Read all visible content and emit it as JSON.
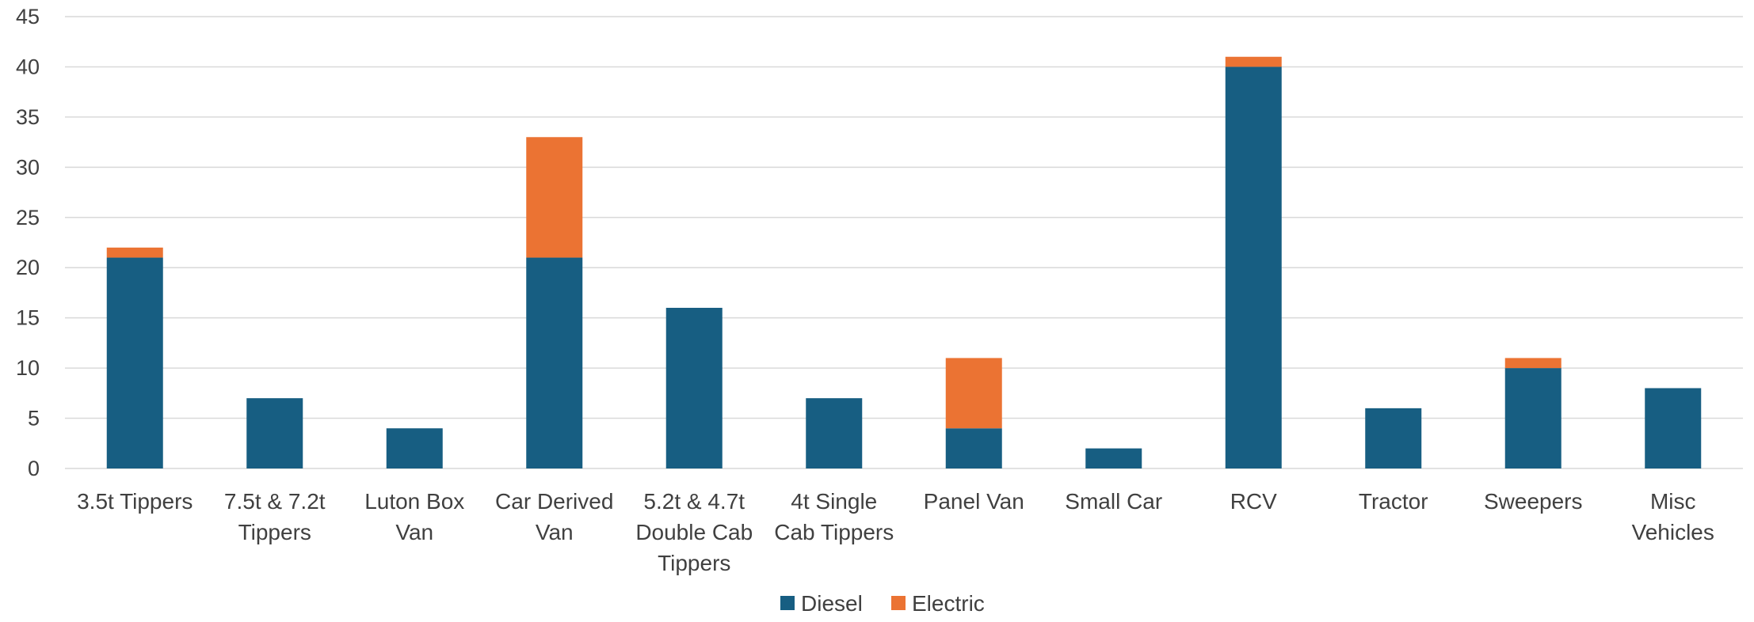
{
  "chart_data": {
    "type": "bar",
    "stacked": true,
    "categories": [
      [
        "3.5t Tippers"
      ],
      [
        "7.5t & 7.2t",
        "Tippers"
      ],
      [
        "Luton Box",
        "Van"
      ],
      [
        "Car Derived",
        "Van"
      ],
      [
        "5.2t & 4.7t",
        "Double Cab",
        "Tippers"
      ],
      [
        "4t Single",
        "Cab Tippers"
      ],
      [
        "Panel Van"
      ],
      [
        "Small Car"
      ],
      [
        "RCV"
      ],
      [
        "Tractor"
      ],
      [
        "Sweepers"
      ],
      [
        "Misc",
        "Vehicles"
      ]
    ],
    "series": [
      {
        "name": "Diesel",
        "color": "#175e82",
        "values": [
          21,
          7,
          4,
          21,
          16,
          7,
          4,
          2,
          40,
          6,
          10,
          8
        ]
      },
      {
        "name": "Electric",
        "color": "#eb7333",
        "values": [
          1,
          0,
          0,
          12,
          0,
          0,
          7,
          0,
          1,
          0,
          1,
          0
        ]
      }
    ],
    "yticks": [
      "0",
      "5",
      "10",
      "15",
      "20",
      "25",
      "30",
      "35",
      "40",
      "45"
    ],
    "ylim": [
      0,
      45
    ],
    "grid": true,
    "legend_position": "bottom",
    "title": "",
    "xlabel": "",
    "ylabel": ""
  }
}
